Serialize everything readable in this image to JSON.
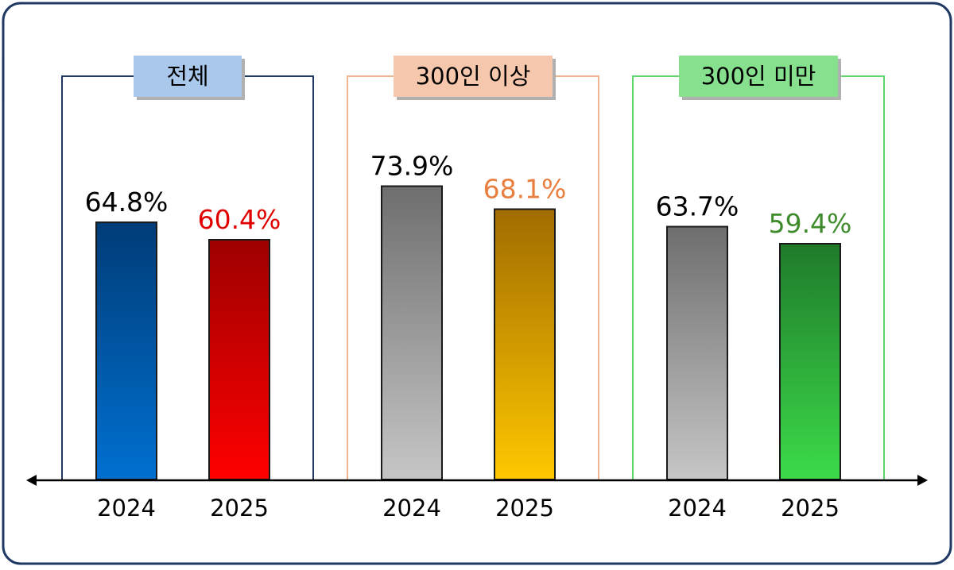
{
  "chart_data": {
    "type": "bar",
    "ylim": [
      0,
      80
    ],
    "groups": [
      {
        "title": "전체",
        "title_bg": "#A9C8EC",
        "frame_color": "#1F3864",
        "bars": [
          {
            "category": "2024",
            "value": 64.8,
            "label": "64.8%",
            "label_color": "#000000",
            "color_top": "#003C78",
            "color_bottom": "#0070D0"
          },
          {
            "category": "2025",
            "value": 60.4,
            "label": "60.4%",
            "label_color": "#E00000",
            "color_top": "#9E0000",
            "color_bottom": "#FF0000"
          }
        ]
      },
      {
        "title": "300인 이상",
        "title_bg": "#F5C7AC",
        "frame_color": "#F2B48C",
        "bars": [
          {
            "category": "2024",
            "value": 73.9,
            "label": "73.9%",
            "label_color": "#000000",
            "color_top": "#6E6E6E",
            "color_bottom": "#C6C6C6"
          },
          {
            "category": "2025",
            "value": 68.1,
            "label": "68.1%",
            "label_color": "#E97E3E",
            "color_top": "#A06C00",
            "color_bottom": "#FFC800"
          }
        ]
      },
      {
        "title": "300인 미만",
        "title_bg": "#86E08E",
        "frame_color": "#5ED66A",
        "bars": [
          {
            "category": "2024",
            "value": 63.7,
            "label": "63.7%",
            "label_color": "#000000",
            "color_top": "#6E6E6E",
            "color_bottom": "#C6C6C6"
          },
          {
            "category": "2025",
            "value": 59.4,
            "label": "59.4%",
            "label_color": "#3D8B2A",
            "color_top": "#1F7A2A",
            "color_bottom": "#3CDB4A"
          }
        ]
      }
    ],
    "outer_border_color": "#1F3864",
    "axis_color": "#000000"
  }
}
